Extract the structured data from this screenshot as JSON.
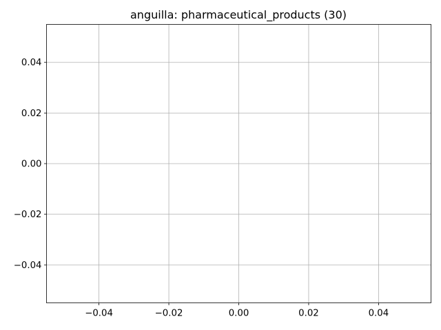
{
  "chart_data": {
    "type": "line",
    "title": "anguilla: pharmaceutical_products (30)",
    "xlabel": "",
    "ylabel": "",
    "xlim": [
      -0.055,
      0.055
    ],
    "ylim": [
      -0.055,
      0.055
    ],
    "x_ticks": [
      -0.04,
      -0.02,
      0.0,
      0.02,
      0.04
    ],
    "x_tick_labels": [
      "−0.04",
      "−0.02",
      "0.00",
      "0.02",
      "0.04"
    ],
    "y_ticks": [
      -0.04,
      -0.02,
      0.0,
      0.02,
      0.04
    ],
    "y_tick_labels": [
      "−0.04",
      "−0.02",
      "0.00",
      "0.02",
      "0.04"
    ],
    "grid": true,
    "series": [],
    "colors": {
      "grid": "#b0b0b0",
      "axes": "#000000",
      "background": "#ffffff"
    }
  }
}
